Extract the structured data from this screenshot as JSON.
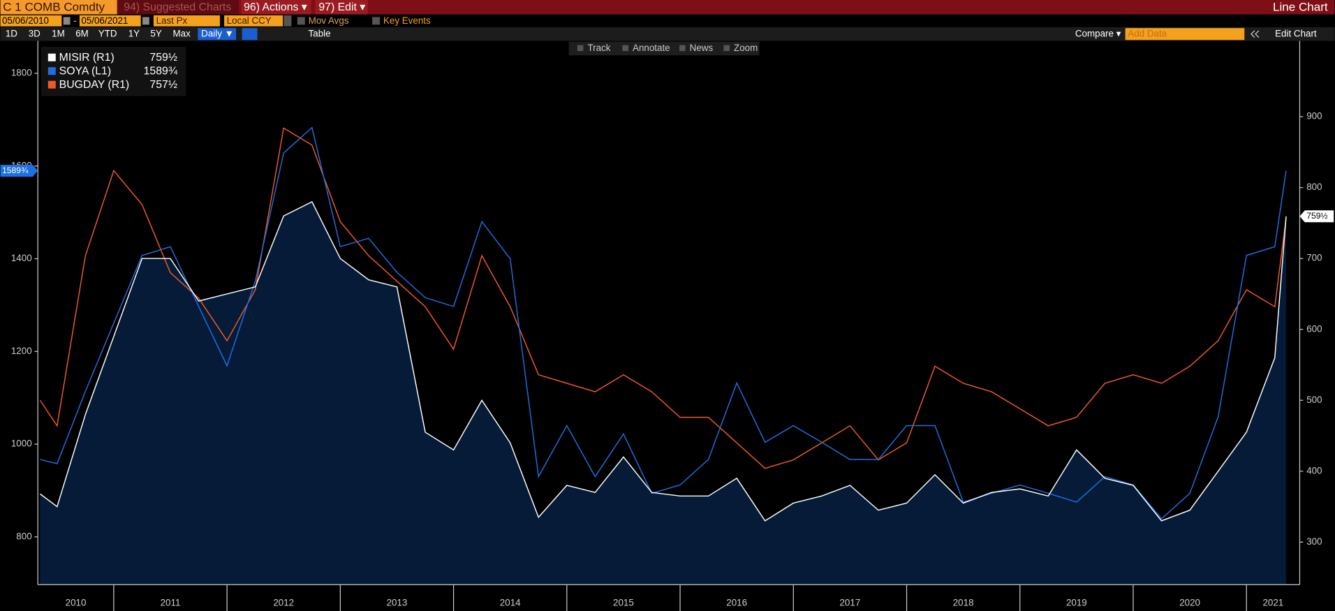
{
  "toolbar": {
    "security": "C 1 COMB Comdty",
    "menus": [
      "94) Suggested Charts",
      "96) Actions ▾",
      "97) Edit ▾"
    ],
    "view": "Line Chart",
    "start_date": "05/06/2010",
    "date_separator": "-",
    "end_date": "05/06/2021",
    "field": "Last Px",
    "currency": "Local CCY",
    "toggles": [
      "Mov Avgs",
      "Key Events"
    ],
    "periods": [
      "1D",
      "3D",
      "1M",
      "6M",
      "YTD",
      "1Y",
      "5Y",
      "Max"
    ],
    "frequency": "Daily ▼",
    "table": "Table",
    "compare": "Compare ▾",
    "add_data": "Add Data",
    "edit_chart": "Edit Chart",
    "tools": [
      "Track",
      "Annotate",
      "News",
      "Zoom"
    ]
  },
  "chart_data": {
    "type": "line",
    "legend": "top-left",
    "grid": false,
    "x": [
      2010.35,
      2010.5,
      2010.75,
      2011.0,
      2011.25,
      2011.5,
      2011.75,
      2012.0,
      2012.25,
      2012.5,
      2012.75,
      2013.0,
      2013.25,
      2013.5,
      2013.75,
      2014.0,
      2014.25,
      2014.5,
      2014.75,
      2015.0,
      2015.25,
      2015.5,
      2015.75,
      2016.0,
      2016.25,
      2016.5,
      2016.75,
      2017.0,
      2017.25,
      2017.5,
      2017.75,
      2018.0,
      2018.25,
      2018.5,
      2018.75,
      2019.0,
      2019.25,
      2019.5,
      2019.75,
      2020.0,
      2020.25,
      2020.5,
      2020.75,
      2021.0,
      2021.25,
      2021.35
    ],
    "xlim": [
      2010.33,
      2021.47
    ],
    "xticks": [
      2010,
      2011,
      2012,
      2013,
      2014,
      2015,
      2016,
      2017,
      2018,
      2019,
      2020,
      2021
    ],
    "ylim": [
      697,
      1870
    ],
    "yticks": [
      800,
      1000,
      1200,
      1400,
      1600,
      1800
    ],
    "y2lim": [
      240,
      1007
    ],
    "y2ticks": [
      300,
      400,
      500,
      600,
      700,
      800,
      900
    ],
    "series": [
      {
        "name": "MISIR (R1)",
        "color": "#ffffff",
        "axis": "y2",
        "area_color": "#061b38",
        "values": [
          368,
          350,
          480,
          590,
          700,
          700,
          640,
          650,
          660,
          760,
          780,
          700,
          670,
          660,
          455,
          430,
          500,
          440,
          335,
          380,
          370,
          420,
          370,
          365,
          365,
          390,
          330,
          355,
          365,
          380,
          345,
          355,
          395,
          355,
          370,
          375,
          365,
          430,
          390,
          380,
          330,
          345,
          400,
          455,
          560,
          759.5
        ],
        "value_labels": [
          null,
          null,
          null,
          null,
          null,
          null,
          null,
          null,
          null,
          null,
          null,
          null,
          null,
          null,
          null,
          null,
          null,
          null,
          null,
          null,
          null,
          null,
          null,
          null,
          null,
          null,
          null,
          null,
          null,
          null,
          null,
          null,
          null,
          null,
          null,
          null,
          null,
          null,
          null,
          null,
          null,
          null,
          null,
          null,
          null,
          "759½"
        ]
      },
      {
        "name": "SOYA (L1)",
        "color": "#1e6fe0",
        "values": [
          967,
          958,
          1114,
          1261,
          1407,
          1426,
          1297,
          1169,
          1352,
          1628,
          1683,
          1426,
          1444,
          1371,
          1316,
          1297,
          1480,
          1400,
          930,
          1040,
          930,
          1022,
          894,
          912,
          967,
          1132,
          1004,
          1040,
          1004,
          967,
          967,
          1040,
          1040,
          875,
          894,
          912,
          894,
          875,
          930,
          912,
          839,
          894,
          1059,
          1407,
          1426,
          1589.75
        ],
        "value_labels": [
          null,
          null,
          null,
          null,
          null,
          null,
          null,
          null,
          null,
          null,
          null,
          null,
          null,
          null,
          null,
          null,
          null,
          null,
          null,
          null,
          null,
          null,
          null,
          null,
          null,
          null,
          null,
          null,
          null,
          null,
          null,
          null,
          null,
          null,
          null,
          null,
          null,
          null,
          null,
          null,
          null,
          null,
          null,
          null,
          null,
          "1589¾"
        ]
      },
      {
        "name": "BUGDAY (R1)",
        "color": "#f05a28",
        "axis": "y2",
        "values": [
          500,
          464,
          704,
          824,
          776,
          680,
          644,
          584,
          656,
          884,
          860,
          752,
          704,
          668,
          632,
          572,
          704,
          632,
          536,
          524,
          512,
          536,
          512,
          476,
          476,
          440,
          404,
          416,
          440,
          464,
          416,
          440,
          548,
          524,
          512,
          488,
          464,
          476,
          524,
          536,
          524,
          548,
          584,
          656,
          632,
          757.5
        ],
        "value_labels": [
          null,
          null,
          null,
          null,
          null,
          null,
          null,
          null,
          null,
          null,
          null,
          null,
          null,
          null,
          null,
          null,
          null,
          null,
          null,
          null,
          null,
          null,
          null,
          null,
          null,
          null,
          null,
          null,
          null,
          null,
          null,
          null,
          null,
          null,
          null,
          null,
          null,
          null,
          null,
          null,
          null,
          null,
          null,
          null,
          null,
          "757½"
        ]
      }
    ]
  }
}
